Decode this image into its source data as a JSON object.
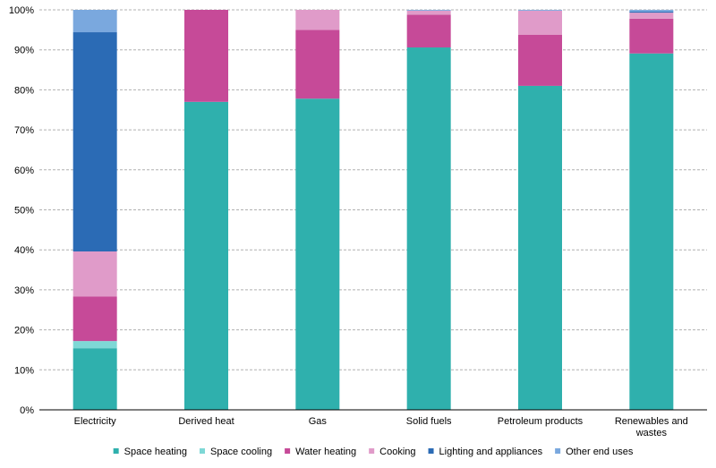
{
  "chart_data": {
    "type": "bar",
    "stacked": true,
    "percent": true,
    "title": "",
    "xlabel": "",
    "ylabel": "",
    "ylim": [
      0,
      100
    ],
    "ytick_step": 10,
    "ytick_labels": [
      "0%",
      "10%",
      "20%",
      "30%",
      "40%",
      "50%",
      "60%",
      "70%",
      "80%",
      "90%",
      "100%"
    ],
    "grid": "horizontal dashed",
    "legend_position": "bottom",
    "categories": [
      [
        "Electricity"
      ],
      [
        "Derived heat"
      ],
      [
        "Gas"
      ],
      [
        "Solid fuels"
      ],
      [
        "Petroleum products"
      ],
      [
        "Renewables and",
        "wastes"
      ]
    ],
    "series": [
      {
        "name": "Space heating",
        "color": "#2FB0AD",
        "values": [
          15.4,
          77.0,
          77.8,
          90.6,
          81.0,
          89.1
        ]
      },
      {
        "name": "Space cooling",
        "color": "#7ED8D6",
        "values": [
          1.8,
          0.0,
          0.0,
          0.0,
          0.0,
          0.0
        ]
      },
      {
        "name": "Water heating",
        "color": "#C64A98",
        "values": [
          11.1,
          23.0,
          17.2,
          8.2,
          12.8,
          8.7
        ]
      },
      {
        "name": "Cooking",
        "color": "#E09BC9",
        "values": [
          11.3,
          0.0,
          5.0,
          1.0,
          6.0,
          1.5
        ]
      },
      {
        "name": "Lighting and appliances",
        "color": "#2B6BB5",
        "values": [
          54.8,
          0.0,
          0.0,
          0.0,
          0.0,
          0.3
        ]
      },
      {
        "name": "Other end uses",
        "color": "#7AA8DE",
        "values": [
          5.6,
          0.0,
          0.0,
          0.2,
          0.2,
          0.4
        ]
      }
    ]
  }
}
